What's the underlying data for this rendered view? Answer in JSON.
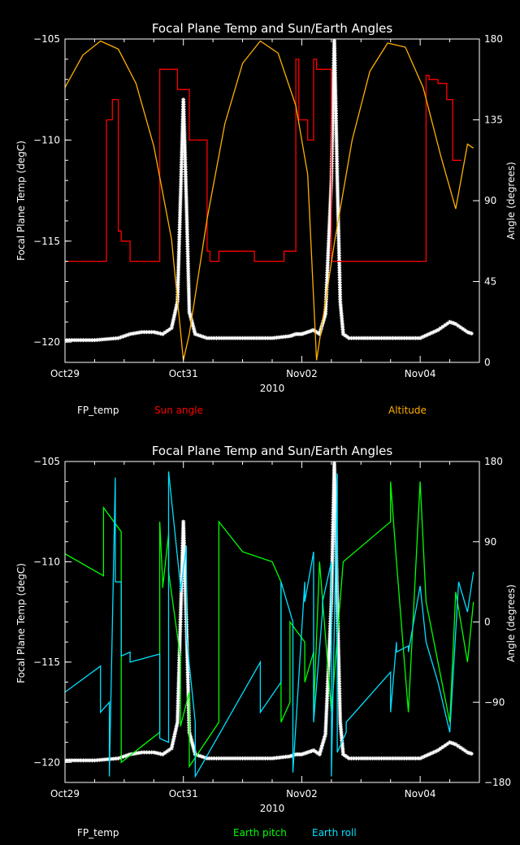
{
  "chart_data": [
    {
      "type": "line",
      "title": "Focal Plane Temp and Sun/Earth Angles",
      "xlabel": "2010",
      "ylabel": "Focal Plane Temp (degC)",
      "y2label": "Angle (degrees)",
      "xlim": [
        0,
        7.0
      ],
      "ylim": [
        -121,
        -105
      ],
      "y2lim": [
        0,
        180
      ],
      "x_ticks": [
        {
          "v": 0,
          "label": "Oct29"
        },
        {
          "v": 2,
          "label": "Oct31"
        },
        {
          "v": 4,
          "label": "Nov02"
        },
        {
          "v": 6,
          "label": "Nov04"
        }
      ],
      "y_ticks": [
        {
          "v": -105,
          "label": "−105"
        },
        {
          "v": -110,
          "label": "−110"
        },
        {
          "v": -115,
          "label": "−115"
        },
        {
          "v": -120,
          "label": "−120"
        }
      ],
      "y2_ticks": [
        {
          "v": 180,
          "label": "180"
        },
        {
          "v": 135,
          "label": "135"
        },
        {
          "v": 90,
          "label": "90"
        },
        {
          "v": 45,
          "label": "45"
        },
        {
          "v": 0,
          "label": "0"
        }
      ],
      "legend": [
        "FP_temp",
        "Sun angle",
        "Altitude"
      ],
      "legend_colors": [
        "#ffffff",
        "#ff0000",
        "#ffb000"
      ],
      "fp_temp": {
        "name": "FP_temp",
        "color": "#ffffff",
        "x": [
          0,
          0.5,
          0.9,
          1.1,
          1.3,
          1.5,
          1.65,
          1.8,
          1.9,
          1.95,
          2.0,
          2.05,
          2.1,
          2.2,
          2.4,
          3.0,
          3.5,
          3.8,
          3.9,
          4.0,
          4.1,
          4.2,
          4.3,
          4.4,
          4.5,
          4.55,
          4.6,
          4.65,
          4.7,
          4.8,
          5.0,
          5.5,
          6.0,
          6.3,
          6.5,
          6.6,
          6.8,
          6.9
        ],
        "values": [
          -119.9,
          -119.9,
          -119.8,
          -119.6,
          -119.5,
          -119.5,
          -119.6,
          -119.3,
          -118,
          -113,
          -108,
          -113,
          -118.5,
          -119.6,
          -119.8,
          -119.8,
          -119.8,
          -119.7,
          -119.6,
          -119.6,
          -119.5,
          -119.4,
          -119.6,
          -118.6,
          -112,
          -105,
          -112,
          -118,
          -119.6,
          -119.8,
          -119.8,
          -119.8,
          -119.8,
          -119.4,
          -119.0,
          -119.1,
          -119.5,
          -119.6
        ]
      },
      "sun_angle": {
        "name": "Sun angle",
        "color": "#ff0000",
        "x": [
          0,
          0.7,
          0.7,
          0.8,
          0.8,
          0.9,
          0.9,
          0.95,
          0.95,
          1.1,
          1.1,
          1.6,
          1.6,
          1.9,
          1.9,
          2.1,
          2.1,
          2.25,
          2.25,
          2.4,
          2.4,
          2.45,
          2.45,
          2.6,
          2.6,
          3.2,
          3.2,
          3.7,
          3.7,
          3.9,
          3.9,
          3.95,
          3.95,
          4.1,
          4.1,
          4.2,
          4.2,
          4.25,
          4.25,
          4.5,
          4.5,
          5.0,
          5.0,
          5.1,
          5.1,
          5.3,
          5.3,
          5.6,
          5.6,
          6.1,
          6.1,
          6.15,
          6.15,
          6.3,
          6.3,
          6.45,
          6.45,
          6.55,
          6.55,
          6.7
        ],
        "values": [
          -116.0,
          -116.0,
          -109.0,
          -109.0,
          -108.0,
          -108.0,
          -114.5,
          -114.5,
          -115.0,
          -115.0,
          -116.0,
          -116.0,
          -106.5,
          -106.5,
          -107.5,
          -107.5,
          -110.0,
          -110.0,
          -110.0,
          -110.0,
          -115.5,
          -115.5,
          -116.0,
          -116.0,
          -115.5,
          -115.5,
          -116.0,
          -116.0,
          -115.5,
          -115.5,
          -106.0,
          -106.0,
          -109.0,
          -109.0,
          -110.0,
          -110.0,
          -106.0,
          -106.0,
          -106.5,
          -106.5,
          -116.0,
          -116.0,
          -116.0,
          -116.0,
          -116.0,
          -116.0,
          -116.0,
          -116.0,
          -116.0,
          -116.0,
          -106.8,
          -106.8,
          -107.0,
          -107.0,
          -107.2,
          -107.2,
          -108.0,
          -108.0,
          -111.0,
          -111.0
        ]
      },
      "altitude": {
        "name": "Altitude",
        "color": "#ffb000",
        "x": [
          0,
          0.3,
          0.6,
          0.9,
          1.2,
          1.5,
          1.8,
          2.0,
          2.1,
          2.4,
          2.7,
          3.0,
          3.3,
          3.6,
          3.9,
          4.1,
          4.25,
          4.55,
          4.85,
          5.15,
          5.45,
          5.75,
          6.05,
          6.35,
          6.6,
          6.8,
          6.9
        ],
        "values": [
          -107.4,
          -105.8,
          -105.1,
          -105.5,
          -107.2,
          -110.3,
          -114.9,
          -120.9,
          -119.6,
          -113.9,
          -109.2,
          -106.2,
          -105.1,
          -105.7,
          -108.3,
          -111.7,
          -120.9,
          -115.1,
          -110.0,
          -106.6,
          -105.2,
          -105.4,
          -107.4,
          -110.8,
          -113.4,
          -110.2,
          -110.4
        ]
      }
    },
    {
      "type": "line",
      "title": "Focal Plane Temp and Sun/Earth Angles",
      "xlabel": "2010",
      "ylabel": "Focal Plane Temp (degC)",
      "y2label": "Angle (degrees)",
      "xlim": [
        0,
        7.0
      ],
      "ylim": [
        -121,
        -105
      ],
      "y2lim": [
        -180,
        180
      ],
      "x_ticks": [
        {
          "v": 0,
          "label": "Oct29"
        },
        {
          "v": 2,
          "label": "Oct31"
        },
        {
          "v": 4,
          "label": "Nov02"
        },
        {
          "v": 6,
          "label": "Nov04"
        }
      ],
      "y_ticks": [
        {
          "v": -105,
          "label": "−105"
        },
        {
          "v": -110,
          "label": "−110"
        },
        {
          "v": -115,
          "label": "−115"
        },
        {
          "v": -120,
          "label": "−120"
        }
      ],
      "y2_ticks": [
        {
          "v": 180,
          "label": "180"
        },
        {
          "v": 90,
          "label": "90"
        },
        {
          "v": 0,
          "label": "0"
        },
        {
          "v": -90,
          "label": "−90"
        },
        {
          "v": -180,
          "label": "−180"
        }
      ],
      "legend": [
        "FP_temp",
        "Earth pitch",
        "Earth roll"
      ],
      "legend_colors": [
        "#ffffff",
        "#00ff00",
        "#00e0ff"
      ],
      "fp_temp": {
        "name": "FP_temp",
        "color": "#ffffff",
        "x": [
          0,
          0.5,
          0.9,
          1.1,
          1.3,
          1.5,
          1.65,
          1.8,
          1.9,
          1.95,
          2.0,
          2.05,
          2.1,
          2.2,
          2.4,
          3.0,
          3.5,
          3.8,
          3.9,
          4.0,
          4.1,
          4.2,
          4.3,
          4.4,
          4.5,
          4.55,
          4.6,
          4.65,
          4.7,
          4.8,
          5.0,
          5.5,
          6.0,
          6.3,
          6.5,
          6.6,
          6.8,
          6.9
        ],
        "values": [
          -119.9,
          -119.9,
          -119.8,
          -119.6,
          -119.5,
          -119.5,
          -119.6,
          -119.3,
          -118,
          -113,
          -108,
          -113,
          -118.5,
          -119.6,
          -119.8,
          -119.8,
          -119.8,
          -119.7,
          -119.6,
          -119.6,
          -119.5,
          -119.4,
          -119.6,
          -118.6,
          -112,
          -105,
          -112,
          -118,
          -119.6,
          -119.8,
          -119.8,
          -119.8,
          -119.8,
          -119.4,
          -119.0,
          -119.1,
          -119.5,
          -119.6
        ]
      },
      "earth_pitch": {
        "name": "Earth pitch",
        "color": "#00ff00",
        "x": [
          0,
          0.65,
          0.65,
          0.95,
          0.95,
          1.6,
          1.6,
          1.65,
          1.65,
          1.75,
          1.75,
          1.95,
          1.95,
          2.1,
          2.1,
          2.6,
          2.6,
          3.0,
          3.5,
          3.65,
          3.65,
          3.8,
          3.8,
          4.05,
          4.05,
          4.2,
          4.2,
          4.3,
          4.3,
          4.5,
          4.5,
          4.7,
          4.7,
          5.5,
          5.5,
          5.6,
          5.6,
          5.8,
          5.8,
          6.0,
          6.0,
          6.1,
          6.1,
          6.3,
          6.3,
          6.5,
          6.5,
          6.6,
          6.6,
          6.8,
          6.8,
          6.9
        ],
        "values": [
          -109.6,
          -110.7,
          -107.3,
          -108.5,
          -120.0,
          -118.5,
          -108.0,
          -111.0,
          -111.3,
          -108.6,
          -110.5,
          -114.8,
          -118.2,
          -116.5,
          -120.2,
          -118.0,
          -108.0,
          -109.5,
          -110.0,
          -111.0,
          -118.0,
          -117.0,
          -113.0,
          -114.0,
          -116.0,
          -114.5,
          -117.5,
          -110.0,
          -110.0,
          -117.5,
          -117.5,
          -110.0,
          -110.0,
          -108.0,
          -106.0,
          -110.0,
          -110.0,
          -117.5,
          -117.5,
          -106.0,
          -106.0,
          -112.0,
          -112.0,
          -115.0,
          -115.0,
          -118.0,
          -118.0,
          -111.5,
          -111.5,
          -115.0,
          -115.0,
          -112.0
        ]
      },
      "earth_roll": {
        "name": "Earth roll",
        "color": "#00e0ff",
        "x": [
          0,
          0.6,
          0.6,
          0.75,
          0.75,
          0.85,
          0.85,
          0.95,
          0.95,
          1.1,
          1.1,
          1.6,
          1.6,
          1.75,
          1.75,
          1.95,
          1.95,
          2.05,
          2.05,
          2.2,
          2.2,
          3.3,
          3.3,
          3.65,
          3.65,
          3.85,
          3.85,
          4.05,
          4.05,
          4.2,
          4.2,
          4.35,
          4.35,
          4.5,
          4.5,
          4.6,
          4.6,
          4.75,
          4.75,
          5.5,
          5.5,
          5.6,
          5.6,
          5.8,
          5.8,
          6.0,
          6.0,
          6.1,
          6.1,
          6.3,
          6.3,
          6.5,
          6.5,
          6.65,
          6.65,
          6.8,
          6.8,
          6.9
        ],
        "values": [
          -116.5,
          -115.2,
          -117.5,
          -117.0,
          -120.7,
          -105.8,
          -111.0,
          -111.0,
          -114.7,
          -114.5,
          -115.0,
          -114.6,
          -118.8,
          -119.0,
          -105.5,
          -111.2,
          -111.5,
          -109.2,
          -113.7,
          -118.0,
          -120.7,
          -115.0,
          -117.5,
          -116.0,
          -111.0,
          -113.0,
          -120.5,
          -111.0,
          -112.0,
          -109.5,
          -118.0,
          -112.5,
          -112.0,
          -110.0,
          -120.7,
          -105.6,
          -119.5,
          -118.5,
          -118.0,
          -115.5,
          -117.5,
          -114.0,
          -114.5,
          -114.2,
          -114.5,
          -111.2,
          -111.2,
          -114.0,
          -114.0,
          -116.0,
          -116.0,
          -118.5,
          -118.5,
          -111.0,
          -111.0,
          -112.5,
          -112.5,
          -110.5
        ]
      }
    }
  ]
}
